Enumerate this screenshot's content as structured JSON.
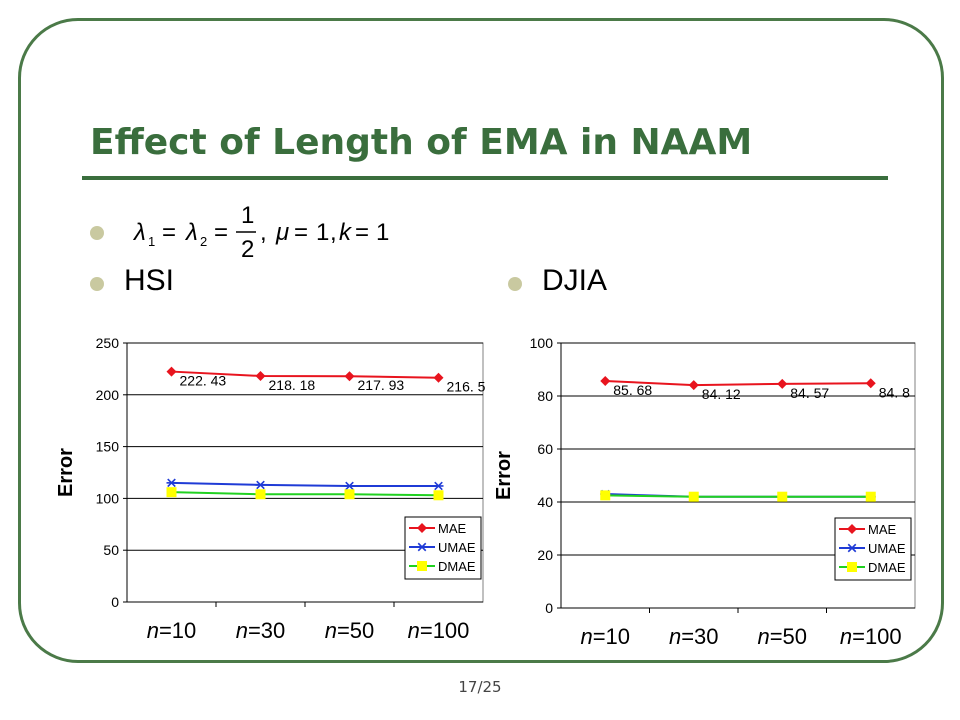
{
  "slide": {
    "title": "Effect of Length of EMA in NAAM",
    "bullets": [
      "HSI",
      "DJIA"
    ],
    "formula": {
      "lambda1": "λ",
      "sub1": "1",
      "eq1": "=",
      "lambda2": "λ",
      "sub2": "2",
      "eq2": "=",
      "numerator": "1",
      "denominator": "2",
      "comma1": ",",
      "mu": "μ",
      "eq3": "=",
      "one": "1",
      "comma2": ",",
      "k": "k",
      "eq4": "=",
      "one2": "1"
    },
    "page_number": "17/25"
  },
  "chart_data": [
    {
      "type": "line",
      "name": "HSI",
      "ylabel": "Error",
      "ylim": [
        0,
        250
      ],
      "yticks": [
        0,
        50,
        100,
        150,
        200,
        250
      ],
      "categories": [
        "n=10",
        "n=30",
        "n=50",
        "n=100"
      ],
      "grid": "horizontal",
      "legend_position": "bottom-right",
      "series": [
        {
          "name": "MAE",
          "color": "#e8141e",
          "marker": "diamond",
          "values": [
            222.43,
            218.18,
            217.93,
            216.5
          ]
        },
        {
          "name": "UMAE",
          "color": "#1f3bd6",
          "marker": "star",
          "values": [
            115,
            113,
            112,
            112
          ]
        },
        {
          "name": "DMAE",
          "color": "#20d120",
          "marker": "square",
          "marker_color": "#ffff00",
          "values": [
            106,
            104,
            104,
            103
          ]
        }
      ],
      "data_labels": [
        "222. 43",
        "218. 18",
        "217. 93",
        "216. 5"
      ]
    },
    {
      "type": "line",
      "name": "DJIA",
      "ylabel": "Error",
      "ylim": [
        0,
        100
      ],
      "yticks": [
        0,
        20,
        40,
        60,
        80,
        100
      ],
      "categories": [
        "n=10",
        "n=30",
        "n=50",
        "n=100"
      ],
      "grid": "horizontal",
      "legend_position": "bottom-right",
      "series": [
        {
          "name": "MAE",
          "color": "#e8141e",
          "marker": "diamond",
          "values": [
            85.68,
            84.12,
            84.57,
            84.8
          ]
        },
        {
          "name": "UMAE",
          "color": "#1f3bd6",
          "marker": "star",
          "values": [
            43,
            42,
            42,
            42
          ]
        },
        {
          "name": "DMAE",
          "color": "#20d120",
          "marker": "square",
          "marker_color": "#ffff00",
          "values": [
            42.5,
            42,
            42,
            42
          ]
        }
      ],
      "data_labels": [
        "85. 68",
        "84. 12",
        "84. 57",
        "84. 8"
      ]
    }
  ]
}
